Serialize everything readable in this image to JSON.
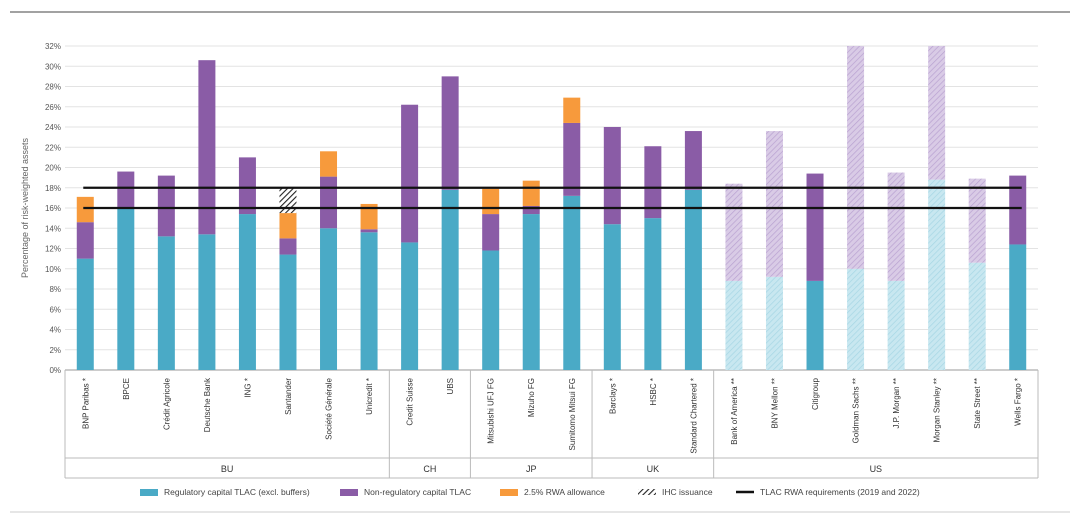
{
  "chart_data": {
    "type": "bar",
    "stacked": true,
    "ylabel": "Percentage of risk-weighted assets",
    "ylim": [
      0,
      32
    ],
    "yticks": [
      "0%",
      "2%",
      "4%",
      "6%",
      "8%",
      "10%",
      "12%",
      "14%",
      "16%",
      "18%",
      "20%",
      "22%",
      "24%",
      "26%",
      "28%",
      "30%",
      "32%"
    ],
    "categories": [
      "BNP Paribas *",
      "BPCE",
      "Crédit Agricole",
      "Deutsche Bank",
      "ING *",
      "Santander",
      "Société Générale",
      "Unicredit *",
      "Credit Suisse",
      "UBS",
      "Mitsubishi UFJ FG",
      "Mizuho FG",
      "Sumitomo Mitsui FG",
      "Barclays *",
      "HSBC *",
      "Standard Chartered *",
      "Bank of America **",
      "BNY Mellon **",
      "Citigroup",
      "Goldman Sachs **",
      "J.P. Morgan **",
      "Morgan Stanley **",
      "State Street **",
      "Wells Fargo *"
    ],
    "faded": [
      false,
      false,
      false,
      false,
      false,
      false,
      false,
      false,
      false,
      false,
      false,
      false,
      false,
      false,
      false,
      false,
      true,
      true,
      false,
      true,
      true,
      true,
      true,
      false
    ],
    "groups": [
      {
        "name": "BU",
        "start": 0,
        "end": 7
      },
      {
        "name": "CH",
        "start": 8,
        "end": 9
      },
      {
        "name": "JP",
        "start": 10,
        "end": 12
      },
      {
        "name": "UK",
        "start": 13,
        "end": 15
      },
      {
        "name": "US",
        "start": 16,
        "end": 23
      }
    ],
    "series": [
      {
        "name": "Regulatory capital TLAC (excl. buffers)",
        "color": "#4aaac6",
        "values": [
          11.0,
          16.0,
          13.2,
          13.4,
          15.4,
          11.4,
          14.0,
          13.6,
          12.6,
          17.8,
          11.8,
          15.4,
          17.2,
          14.4,
          15.0,
          17.8,
          8.8,
          9.2,
          8.8,
          10.0,
          8.8,
          18.8,
          10.6,
          12.4
        ]
      },
      {
        "name": "Non-regulatory capital TLAC",
        "color": "#8a5ca6",
        "values": [
          3.6,
          3.6,
          6.0,
          17.2,
          5.6,
          1.6,
          5.1,
          0.3,
          13.6,
          11.2,
          3.6,
          0.8,
          7.2,
          9.6,
          7.1,
          5.8,
          9.6,
          14.4,
          10.6,
          22.0,
          10.7,
          13.2,
          8.3,
          6.8
        ]
      },
      {
        "name": "2.5% RWA allowance",
        "color": "#f79a3c",
        "values": [
          2.5,
          0,
          0,
          0,
          0,
          2.5,
          2.5,
          2.5,
          0,
          0,
          2.5,
          2.5,
          2.5,
          0,
          0,
          0,
          0,
          0,
          0,
          0,
          0,
          0,
          0,
          0
        ]
      },
      {
        "name": "IHC issuance",
        "color": "#333333",
        "pattern": "hatch",
        "values": [
          0,
          0,
          0,
          0,
          0,
          2.5,
          0,
          0,
          0,
          0,
          0,
          0,
          0,
          0,
          0,
          0,
          0,
          0,
          0,
          0,
          0,
          0,
          0,
          0
        ]
      }
    ],
    "lines": [
      {
        "name": "TLAC RWA requirements (2019 and 2022)",
        "values": [
          16,
          18
        ],
        "color": "#111111"
      }
    ],
    "legend_position": "bottom"
  }
}
